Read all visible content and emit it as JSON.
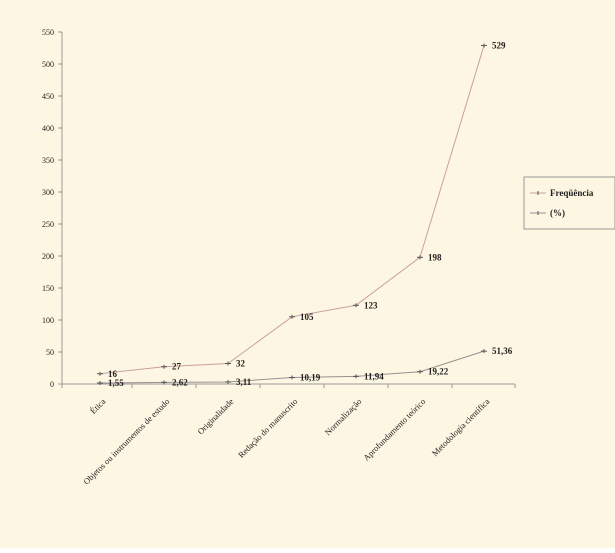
{
  "colors": {
    "background": "#fdf6e3",
    "axis": "#999999",
    "series_1": "#c9a0a0",
    "series_2": "#9a9090",
    "text": "#222222"
  },
  "chart_data": {
    "type": "line",
    "title": "",
    "xlabel": "",
    "ylabel": "",
    "ylim": [
      0,
      550
    ],
    "yticks": [
      0,
      50,
      100,
      150,
      200,
      250,
      300,
      350,
      400,
      450,
      500,
      550
    ],
    "grid": false,
    "legend_position": "right",
    "categories": [
      "Ética",
      "Objetos ou instrumentos de estudo",
      "Originalidade",
      "Redação do manuscrito",
      "Normalização",
      "Aprofundamento teórico",
      "Metodologia científica"
    ],
    "series": [
      {
        "name": "Freqüência",
        "values": [
          16,
          27,
          32,
          105,
          123,
          198,
          529
        ],
        "labels": [
          "16",
          "27",
          "32",
          "105",
          "123",
          "198",
          "529"
        ]
      },
      {
        "name": "(%)",
        "values": [
          1.55,
          2.62,
          3.11,
          10.19,
          11.94,
          19.22,
          51.36
        ],
        "labels": [
          "1,55",
          "2,62",
          "3,11",
          "10,19",
          "11,94",
          "19,22",
          "51,36"
        ]
      }
    ]
  }
}
